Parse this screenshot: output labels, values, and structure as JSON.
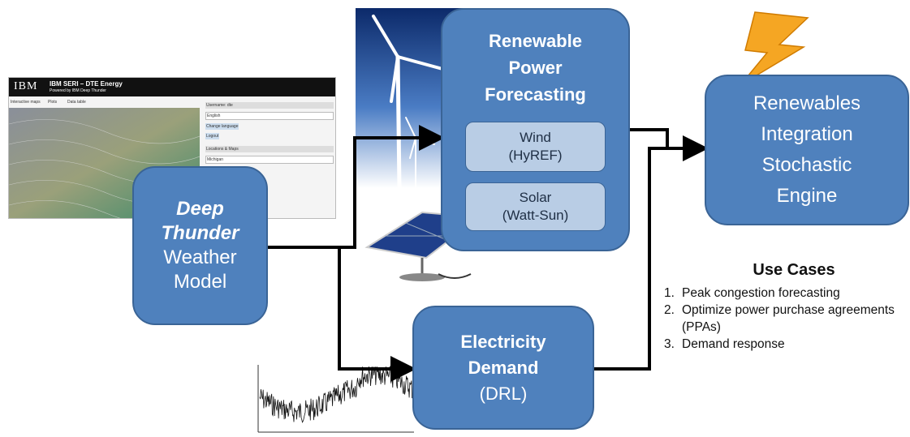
{
  "screenshot": {
    "logo": "IBM",
    "title": "IBM SERI – DTE Energy",
    "subtitle": "Powered by IBM Deep Thunder",
    "tabs": [
      "Interactive maps",
      "Plots",
      "Data table"
    ],
    "panel": [
      "Username: dte",
      "English",
      "Change language",
      "Logout",
      "Locations & Maps",
      "Michigan"
    ]
  },
  "nodes": {
    "weather_model": {
      "emphasis": [
        "Deep",
        "Thunder"
      ],
      "lines": [
        "Weather",
        "Model"
      ]
    },
    "forecasting": {
      "lines": [
        "Renewable",
        "Power",
        "Forecasting"
      ]
    },
    "wind": {
      "lines": [
        "Wind",
        "(HyREF)"
      ]
    },
    "solar": {
      "lines": [
        "Solar",
        "(Watt-Sun)"
      ]
    },
    "demand": {
      "lines": [
        "Electricity",
        "Demand",
        "(DRL)"
      ]
    },
    "engine": {
      "lines": [
        "Renewables",
        "Integration",
        "Stochastic",
        "Engine"
      ]
    }
  },
  "use_cases": {
    "title": "Use Cases",
    "items": [
      {
        "number": "1.",
        "text": "Peak congestion forecasting"
      },
      {
        "number": "2.",
        "text": "Optimize power purchase agreements (PPAs)"
      },
      {
        "number": "3.",
        "text": "Demand response"
      }
    ]
  }
}
